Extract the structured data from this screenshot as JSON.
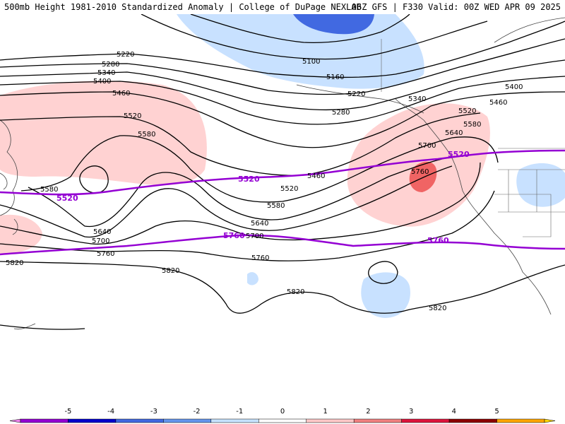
{
  "header": {
    "title_left": "500mb Height 1981-2010 Standardized Anomaly | College of DuPage NEXLAB",
    "title_right": "06Z GFS | F330 Valid: 00Z WED APR 09 2025"
  },
  "contour_labels": [
    "5100",
    "5160",
    "5220",
    "5280",
    "5340",
    "5400",
    "5460",
    "5520",
    "5580",
    "5640",
    "5700",
    "5760",
    "5820"
  ],
  "climo_labels": [
    "5520",
    "5760"
  ],
  "legend": {
    "ticks": [
      "-5",
      "-4",
      "-3",
      "-2",
      "-1",
      "0",
      "1",
      "2",
      "3",
      "4",
      "5"
    ],
    "colors": [
      "#ee82ee",
      "#9400d3",
      "#0000cd",
      "#4169e1",
      "#6495ed",
      "#c6e2ff",
      "#ffffff",
      "#ffc8c8",
      "#f08080",
      "#dc143c",
      "#8b0000",
      "#ffa500",
      "#ffd700"
    ]
  },
  "colors": {
    "contour": "#000000",
    "climo_line": "#9400d3",
    "positive_anomaly": "#ffd2d2",
    "strong_positive_anomaly": "#f06464",
    "negative_anomaly": "#c8e1ff",
    "strong_negative_anomaly": "#4169e1"
  }
}
